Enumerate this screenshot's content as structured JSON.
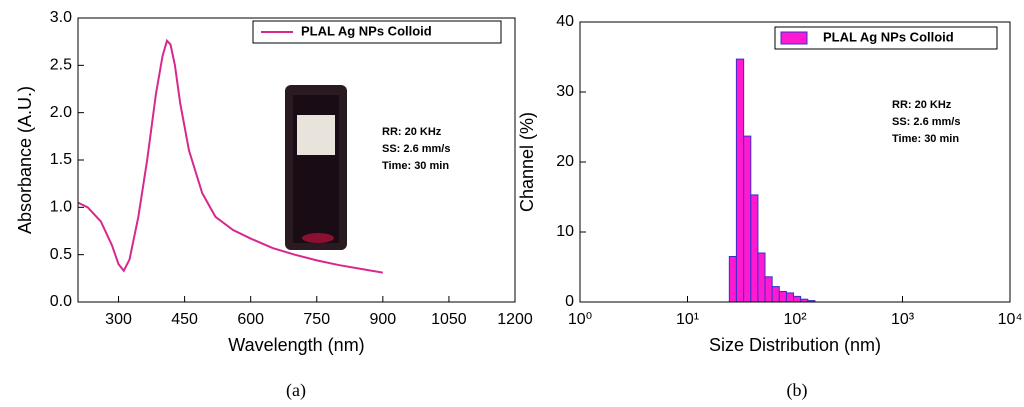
{
  "chart_data": [
    {
      "type": "line",
      "xlabel": "Wavelength (nm)",
      "ylabel": "Absorbance (A.U.)",
      "caption": "(a)",
      "xlim": [
        208,
        1200
      ],
      "xticks": [
        300,
        450,
        600,
        750,
        900,
        1050,
        1200
      ],
      "ylim": [
        0,
        3
      ],
      "yticks": [
        {
          "value": 0,
          "label": "0.0"
        },
        0.5,
        {
          "value": 1,
          "label": "1.0"
        },
        1.5,
        {
          "value": 2,
          "label": "2.0"
        },
        2.5,
        {
          "value": 3,
          "label": "3.0"
        }
      ],
      "legend": "upper right",
      "annotations": [
        "RR: 20 KHz",
        "SS: 2.6 mm/s",
        "Time: 30 min"
      ],
      "series": [
        {
          "name": "PLAL Ag NPs Colloid",
          "color": "#d6288f",
          "x": [
            208,
            230,
            260,
            285,
            300,
            312,
            325,
            345,
            365,
            385,
            400,
            410,
            418,
            428,
            440,
            460,
            490,
            520,
            560,
            600,
            650,
            700,
            750,
            800,
            850,
            900
          ],
          "values": [
            1.05,
            1.0,
            0.85,
            0.6,
            0.4,
            0.33,
            0.45,
            0.9,
            1.5,
            2.2,
            2.6,
            2.76,
            2.72,
            2.5,
            2.1,
            1.6,
            1.15,
            0.9,
            0.76,
            0.67,
            0.57,
            0.5,
            0.44,
            0.39,
            0.35,
            0.31
          ]
        }
      ]
    },
    {
      "type": "histogram",
      "xlabel": "Size Distribution (nm)",
      "ylabel": "Channel (%)",
      "caption": "(b)",
      "log_x": true,
      "xlim": [
        1,
        10000
      ],
      "xticks": [
        {
          "value": 1,
          "label": "10⁰"
        },
        {
          "value": 10,
          "label": "10¹"
        },
        {
          "value": 100,
          "label": "10²"
        },
        {
          "value": 1000,
          "label": "10³"
        },
        {
          "value": 10000,
          "label": "10⁴"
        }
      ],
      "ylim": [
        0,
        40
      ],
      "yticks": [
        0,
        10,
        20,
        30,
        40
      ],
      "legend": "upper right",
      "annotations": [
        "RR: 20 KHz",
        "SS: 2.6 mm/s",
        "Time: 30 min"
      ],
      "series": [
        {
          "name": "PLAL Ag NPs Colloid",
          "color": "#ff1ad1",
          "edgecolor": "#3b2fc9",
          "bins": [
            24.5,
            28.5,
            33.3,
            38.8,
            45.2,
            52.6,
            61.3,
            71.4,
            83.2,
            96.9,
            112.9,
            131.5,
            153.2
          ],
          "values": [
            6.5,
            34.7,
            23.7,
            15.3,
            7.0,
            3.6,
            2.2,
            1.5,
            1.3,
            0.8,
            0.4,
            0.2
          ]
        }
      ]
    }
  ]
}
